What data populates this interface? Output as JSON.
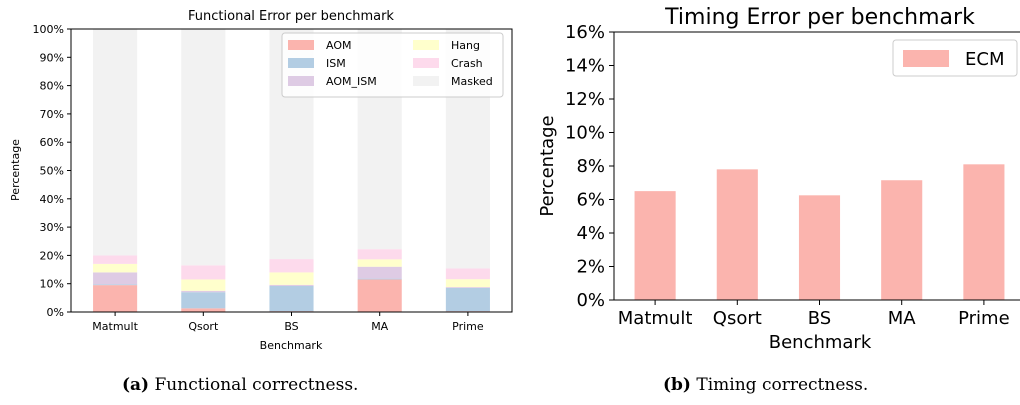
{
  "chart_data": [
    {
      "type": "bar",
      "stacked": true,
      "title": "Functional Error per benchmark",
      "xlabel": "Benchmark",
      "ylabel": "Percentage",
      "categories": [
        "Matmult",
        "Qsort",
        "BS",
        "MA",
        "Prime"
      ],
      "yticks": [
        "0%",
        "10%",
        "20%",
        "30%",
        "40%",
        "50%",
        "60%",
        "70%",
        "80%",
        "90%",
        "100%"
      ],
      "ylim": [
        0,
        100
      ],
      "legend_position": "top-right",
      "legend_columns": 2,
      "series": [
        {
          "name": "AOM",
          "color": "#fbb4ae",
          "values": [
            9.5,
            1.3,
            0.3,
            11.5,
            0.3
          ]
        },
        {
          "name": "ISM",
          "color": "#b3cde3",
          "values": [
            0.3,
            5.7,
            8.9,
            0.3,
            8.2
          ]
        },
        {
          "name": "AOM_ISM",
          "color": "#decbe4",
          "values": [
            4.2,
            0.5,
            0.4,
            4.2,
            0.3
          ]
        },
        {
          "name": "Hang",
          "color": "#ffffcc",
          "values": [
            3.0,
            4.0,
            4.4,
            2.6,
            2.8
          ]
        },
        {
          "name": "Crash",
          "color": "#fddaec",
          "values": [
            3.0,
            5.0,
            4.7,
            3.6,
            3.8
          ]
        },
        {
          "name": "Masked",
          "color": "#f2f2f2",
          "values": [
            80.0,
            83.5,
            81.3,
            77.8,
            84.6
          ]
        }
      ],
      "legend_order": [
        "AOM",
        "ISM",
        "AOM_ISM",
        "Hang",
        "Crash",
        "Masked"
      ],
      "caption_label": "(a)",
      "caption_text": "Functional correctness."
    },
    {
      "type": "bar",
      "title": "Timing Error per benchmark",
      "xlabel": "Benchmark",
      "ylabel": "Percentage",
      "categories": [
        "Matmult",
        "Qsort",
        "BS",
        "MA",
        "Prime"
      ],
      "yticks": [
        "0%",
        "2%",
        "4%",
        "6%",
        "8%",
        "10%",
        "12%",
        "14%",
        "16%"
      ],
      "ylim": [
        0,
        16
      ],
      "legend_position": "top-right",
      "series": [
        {
          "name": "ECM",
          "color": "#fbb4ae",
          "values": [
            6.5,
            7.8,
            6.25,
            7.15,
            8.1
          ]
        }
      ],
      "caption_label": "(b)",
      "caption_text": "Timing correctness."
    }
  ]
}
